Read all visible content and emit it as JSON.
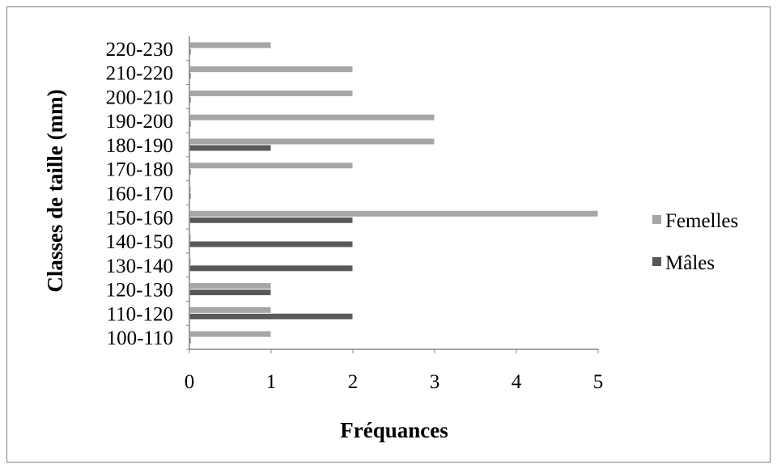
{
  "chart_data": {
    "type": "bar",
    "orientation": "horizontal",
    "categories": [
      "100-110",
      "110-120",
      "120-130",
      "130-140",
      "140-150",
      "150-160",
      "160-170",
      "170-180",
      "180-190",
      "190-200",
      "200-210",
      "210-220",
      "220-230"
    ],
    "series": [
      {
        "name": "Mâles",
        "values": [
          0,
          2,
          1,
          2,
          2,
          2,
          0,
          0,
          1,
          0,
          0,
          0,
          0
        ],
        "color": "#595959"
      },
      {
        "name": "Femelles",
        "values": [
          1,
          1,
          1,
          0,
          0,
          5,
          0,
          2,
          3,
          3,
          2,
          2,
          1
        ],
        "color": "#a6a6a6"
      }
    ],
    "xlabel": "Fréquances",
    "ylabel": "Classes de taille (mm)",
    "xlim": [
      0,
      5
    ],
    "xticks": [
      "0",
      "1",
      "2",
      "3",
      "4",
      "5"
    ],
    "grid": false,
    "legend_position": "right",
    "legend": [
      "Femelles",
      "Mâles"
    ]
  }
}
